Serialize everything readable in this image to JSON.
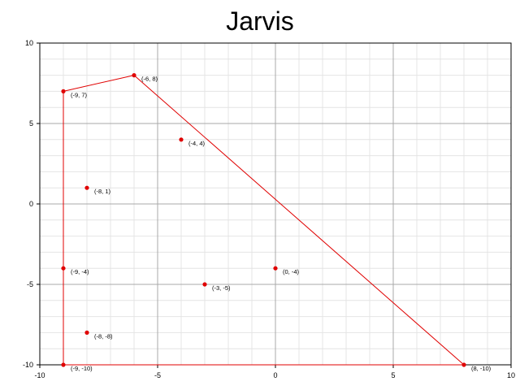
{
  "chart_data": {
    "type": "scatter",
    "title": "Jarvis",
    "xlabel": "",
    "ylabel": "",
    "xlim": [
      -10,
      10
    ],
    "ylim": [
      -10,
      10
    ],
    "xticks": [
      -10,
      -5,
      0,
      5,
      10
    ],
    "yticks": [
      -10,
      -5,
      0,
      5,
      10
    ],
    "grid": true,
    "point_color": "#e00000",
    "hull_color": "#e00000",
    "points": [
      {
        "x": -6,
        "y": 8,
        "label": "(-6, 8)"
      },
      {
        "x": -9,
        "y": 7,
        "label": "(-9, 7)"
      },
      {
        "x": -4,
        "y": 4,
        "label": "(-4, 4)"
      },
      {
        "x": -8,
        "y": 1,
        "label": "(-8, 1)"
      },
      {
        "x": -9,
        "y": -4,
        "label": "(-9, -4)"
      },
      {
        "x": 0,
        "y": -4,
        "label": "(0, -4)"
      },
      {
        "x": -3,
        "y": -5,
        "label": "(-3, -5)"
      },
      {
        "x": -8,
        "y": -8,
        "label": "(-8, -8)"
      },
      {
        "x": -9,
        "y": -10,
        "label": "(-9, -10)"
      },
      {
        "x": 8,
        "y": -10,
        "label": "(8, -10)"
      }
    ],
    "hull": [
      {
        "x": -9,
        "y": -10
      },
      {
        "x": 8,
        "y": -10
      },
      {
        "x": -6,
        "y": 8
      },
      {
        "x": -9,
        "y": 7
      },
      {
        "x": -9,
        "y": -10
      }
    ]
  }
}
